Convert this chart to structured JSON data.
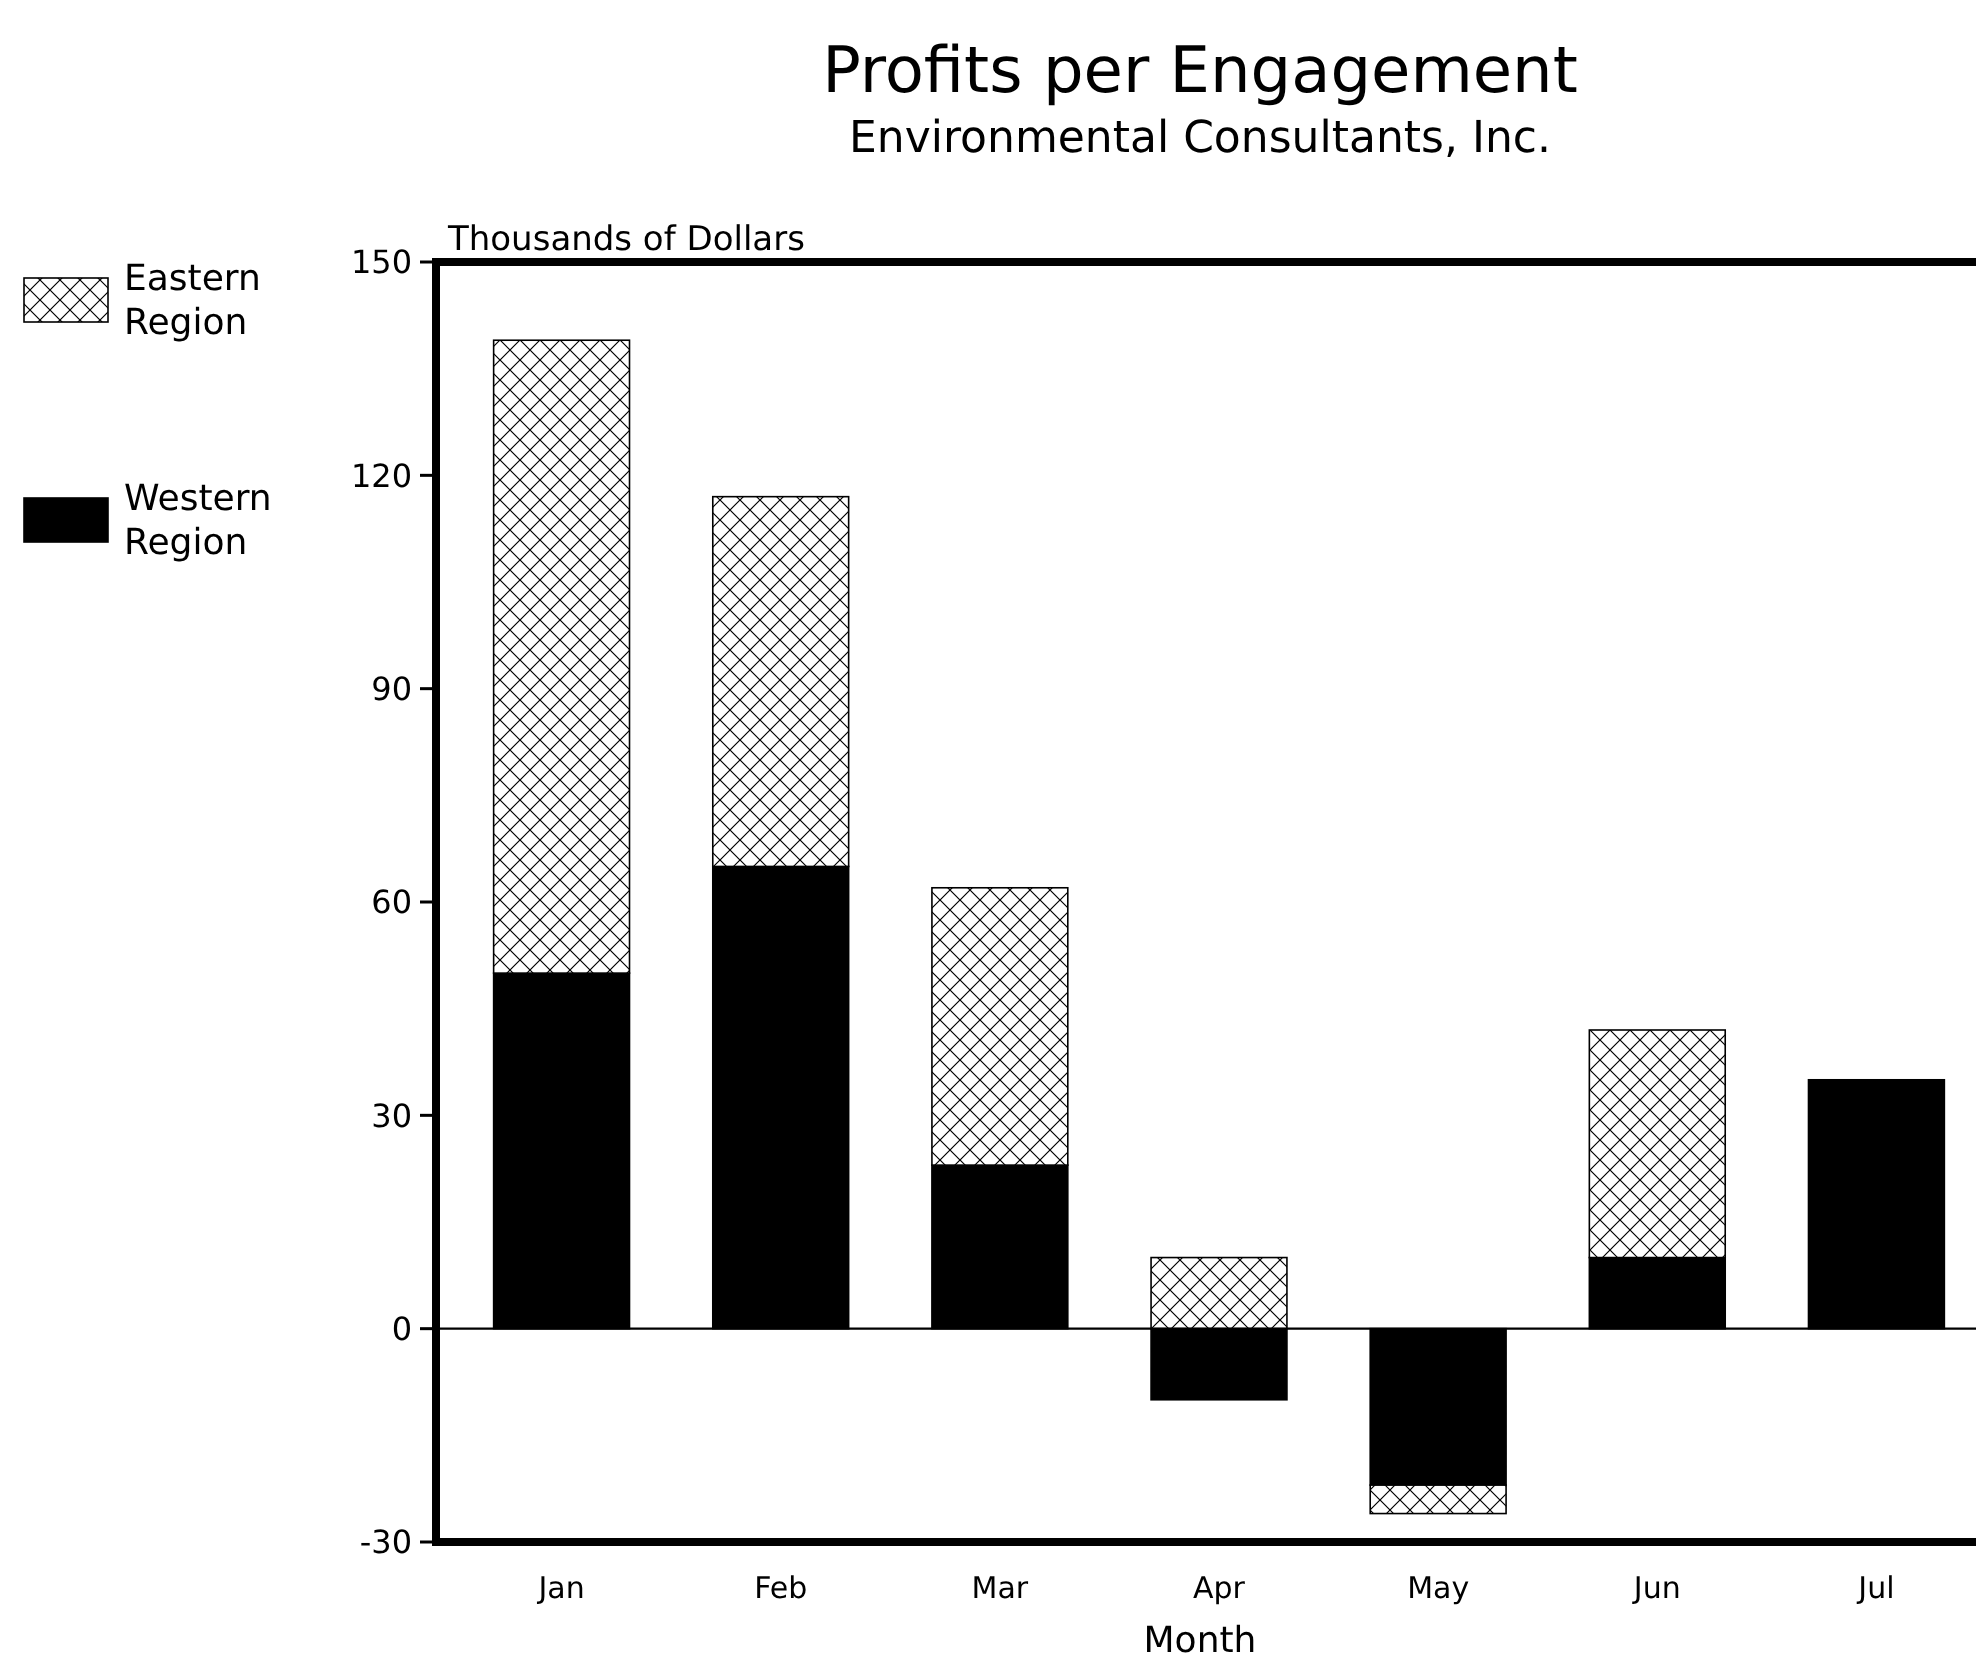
{
  "chart_data": {
    "type": "bar",
    "title": "Profits per Engagement",
    "subtitle": "Environmental Consultants, Inc.",
    "xlabel": "Month",
    "ylabel": "Thousands of Dollars",
    "categories": [
      "Jan",
      "Feb",
      "Mar",
      "Apr",
      "May",
      "Jun",
      "Jul"
    ],
    "stacked": true,
    "series": [
      {
        "name": "Western Region",
        "color": "#000000",
        "values": [
          50,
          65,
          23,
          -10,
          -22,
          10,
          35
        ]
      },
      {
        "name": "Eastern Region",
        "color": "#ffffff",
        "values": [
          89,
          52,
          39,
          10,
          -4,
          32,
          0
        ]
      }
    ],
    "ylim": [
      -30,
      150
    ],
    "yticks": [
      -30,
      0,
      30,
      60,
      90,
      120,
      150
    ],
    "grid": false,
    "ref_lines": [
      {
        "axis": "y",
        "value": 0
      }
    ],
    "legend": "left"
  }
}
